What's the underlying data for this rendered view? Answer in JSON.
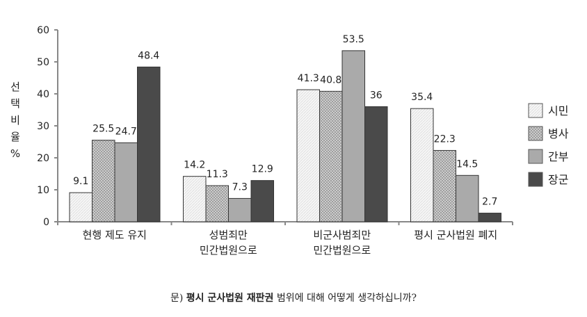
{
  "chart_data": {
    "type": "bar",
    "categories": [
      [
        "현행 제도 유지"
      ],
      [
        "성범죄만",
        "민간법원으로"
      ],
      [
        "비군사범죄만",
        "민간법원으로"
      ],
      [
        "평시 군사법원 폐지"
      ]
    ],
    "series": [
      {
        "name": "시민",
        "values": [
          9.1,
          14.2,
          41.3,
          35.4
        ],
        "color": "#f4f4f4",
        "pattern": "light"
      },
      {
        "name": "병사",
        "values": [
          25.5,
          11.3,
          40.8,
          22.3
        ],
        "color": "#c8c8c8",
        "pattern": "hatch"
      },
      {
        "name": "간부",
        "values": [
          24.7,
          7.3,
          53.5,
          14.5
        ],
        "color": "#aaaaaa",
        "pattern": "solid"
      },
      {
        "name": "장군",
        "values": [
          48.4,
          12.9,
          36,
          2.7
        ],
        "color": "#4a4a4a",
        "pattern": "solid"
      }
    ],
    "value_labels": [
      [
        "9.1",
        "14.2",
        "41.3",
        "35.4"
      ],
      [
        "25.5",
        "11.3",
        "40.8",
        "22.3"
      ],
      [
        "24.7",
        "7.3",
        "53.5",
        "14.5"
      ],
      [
        "48.4",
        "12.9",
        "36",
        "2.7"
      ]
    ],
    "ylabel": "선택비율%",
    "ylim": [
      0,
      60
    ],
    "yticks": [
      0,
      10,
      20,
      30,
      40,
      50,
      60
    ],
    "legend_position": "right",
    "grid": false
  },
  "caption": {
    "prefix": "문)",
    "bold": "평시 군사법원 재판권",
    "rest": "범위에 대해 어떻게 생각하십니까?"
  }
}
